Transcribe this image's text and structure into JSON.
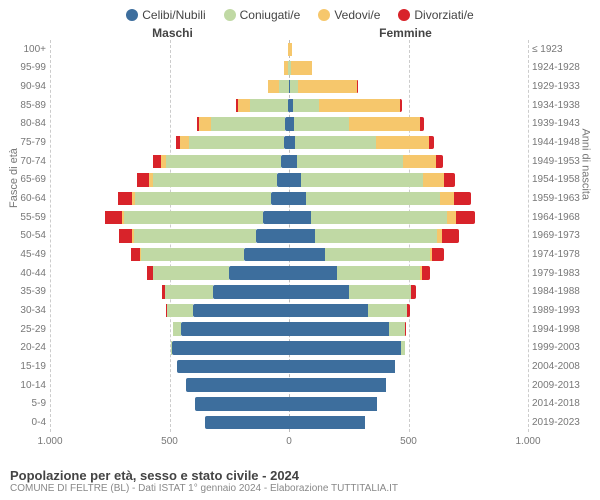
{
  "legend": [
    {
      "label": "Celibi/Nubili",
      "color": "#3d6e9d"
    },
    {
      "label": "Coniugati/e",
      "color": "#c0d9a4"
    },
    {
      "label": "Vedovi/e",
      "color": "#f6c76c"
    },
    {
      "label": "Divorziati/e",
      "color": "#d8232a"
    }
  ],
  "headers": {
    "male": "Maschi",
    "female": "Femmine"
  },
  "ylabel_left": "Fasce di età",
  "ylabel_right": "Anni di nascita",
  "axis": {
    "max": 1000,
    "ticks_male": [
      1000,
      500,
      0
    ],
    "ticks_female": [
      0,
      500,
      1000
    ],
    "tick_labels": [
      "1.000",
      "500",
      "0",
      "500",
      "1.000"
    ]
  },
  "title": "Popolazione per età, sesso e stato civile - 2024",
  "subtitle": "COMUNE DI FELTRE (BL) - Dati ISTAT 1° gennaio 2024 - Elaborazione TUTTITALIA.IT",
  "rows": [
    {
      "age": "100+",
      "birth": "≤ 1923",
      "m": [
        0,
        0,
        3,
        0
      ],
      "f": [
        0,
        0,
        12,
        0
      ]
    },
    {
      "age": "95-99",
      "birth": "1924-1928",
      "m": [
        0,
        5,
        15,
        0
      ],
      "f": [
        2,
        8,
        85,
        0
      ]
    },
    {
      "age": "90-94",
      "birth": "1929-1933",
      "m": [
        2,
        40,
        45,
        2
      ],
      "f": [
        6,
        30,
        250,
        4
      ]
    },
    {
      "age": "85-89",
      "birth": "1934-1938",
      "m": [
        5,
        160,
        50,
        5
      ],
      "f": [
        15,
        110,
        340,
        10
      ]
    },
    {
      "age": "80-84",
      "birth": "1939-1943",
      "m": [
        15,
        310,
        50,
        10
      ],
      "f": [
        20,
        230,
        300,
        15
      ]
    },
    {
      "age": "75-79",
      "birth": "1944-1948",
      "m": [
        20,
        400,
        35,
        20
      ],
      "f": [
        25,
        340,
        220,
        20
      ]
    },
    {
      "age": "70-74",
      "birth": "1949-1953",
      "m": [
        35,
        480,
        20,
        35
      ],
      "f": [
        35,
        440,
        140,
        30
      ]
    },
    {
      "age": "65-69",
      "birth": "1954-1958",
      "m": [
        50,
        520,
        15,
        50
      ],
      "f": [
        50,
        510,
        90,
        45
      ]
    },
    {
      "age": "60-64",
      "birth": "1959-1963",
      "m": [
        75,
        570,
        10,
        60
      ],
      "f": [
        70,
        560,
        60,
        70
      ]
    },
    {
      "age": "55-59",
      "birth": "1964-1968",
      "m": [
        110,
        580,
        8,
        70
      ],
      "f": [
        90,
        570,
        40,
        80
      ]
    },
    {
      "age": "50-54",
      "birth": "1969-1973",
      "m": [
        140,
        510,
        5,
        55
      ],
      "f": [
        110,
        510,
        20,
        70
      ]
    },
    {
      "age": "45-49",
      "birth": "1974-1978",
      "m": [
        190,
        430,
        2,
        40
      ],
      "f": [
        150,
        440,
        10,
        50
      ]
    },
    {
      "age": "40-44",
      "birth": "1979-1983",
      "m": [
        250,
        320,
        0,
        25
      ],
      "f": [
        200,
        350,
        5,
        35
      ]
    },
    {
      "age": "35-39",
      "birth": "1984-1988",
      "m": [
        320,
        200,
        0,
        12
      ],
      "f": [
        250,
        260,
        2,
        20
      ]
    },
    {
      "age": "30-34",
      "birth": "1989-1993",
      "m": [
        400,
        110,
        0,
        5
      ],
      "f": [
        330,
        165,
        0,
        10
      ]
    },
    {
      "age": "25-29",
      "birth": "1994-1998",
      "m": [
        450,
        35,
        0,
        2
      ],
      "f": [
        420,
        65,
        0,
        3
      ]
    },
    {
      "age": "20-24",
      "birth": "1999-2003",
      "m": [
        490,
        5,
        0,
        0
      ],
      "f": [
        470,
        15,
        0,
        0
      ]
    },
    {
      "age": "15-19",
      "birth": "2004-2008",
      "m": [
        470,
        0,
        0,
        0
      ],
      "f": [
        445,
        0,
        0,
        0
      ]
    },
    {
      "age": "10-14",
      "birth": "2009-2013",
      "m": [
        430,
        0,
        0,
        0
      ],
      "f": [
        405,
        0,
        0,
        0
      ]
    },
    {
      "age": "5-9",
      "birth": "2014-2018",
      "m": [
        395,
        0,
        0,
        0
      ],
      "f": [
        370,
        0,
        0,
        0
      ]
    },
    {
      "age": "0-4",
      "birth": "2019-2023",
      "m": [
        350,
        0,
        0,
        0
      ],
      "f": [
        320,
        0,
        0,
        0
      ]
    }
  ]
}
